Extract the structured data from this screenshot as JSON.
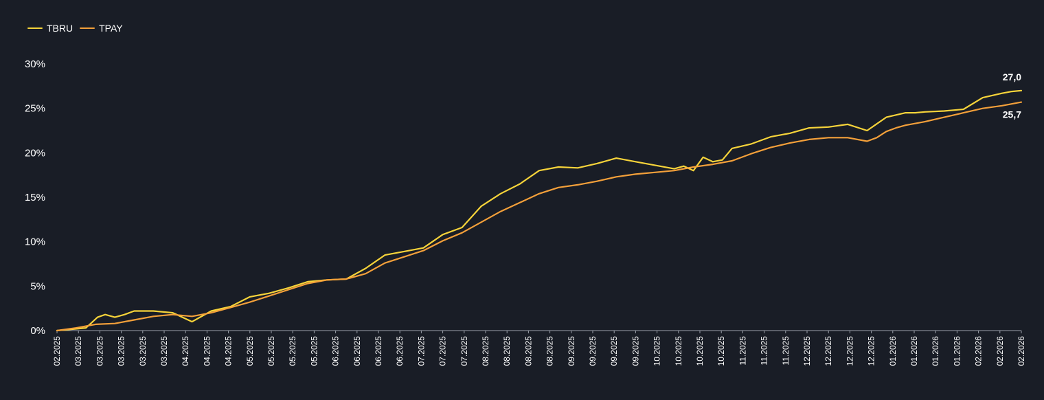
{
  "chart_data": {
    "type": "line",
    "title": "",
    "xlabel": "",
    "ylabel": "",
    "ylim": [
      0,
      30
    ],
    "y_ticks": [
      "0%",
      "5%",
      "10%",
      "15%",
      "20%",
      "25%",
      "30%"
    ],
    "y_tick_values": [
      0,
      5,
      10,
      15,
      20,
      25,
      30
    ],
    "x_tick_labels": [
      "02.2025",
      "03.2025",
      "03.2025",
      "03.2025",
      "03.2025",
      "03.2025",
      "04.2025",
      "04.2025",
      "04.2025",
      "05.2025",
      "05.2025",
      "05.2025",
      "05.2025",
      "06.2025",
      "06.2025",
      "06.2025",
      "06.2025",
      "07.2025",
      "07.2025",
      "07.2025",
      "08.2025",
      "08.2025",
      "08.2025",
      "08.2025",
      "09.2025",
      "09.2025",
      "09.2025",
      "09.2025",
      "10.2025",
      "10.2025",
      "10.2025",
      "10.2025",
      "11.2025",
      "11.2025",
      "11.2025",
      "12.2025",
      "12.2025",
      "12.2025",
      "12.2025",
      "01.2026",
      "01.2026",
      "01.2026",
      "01.2026",
      "02.2026",
      "02.2026",
      "02.2026"
    ],
    "x_domain": [
      0,
      100
    ],
    "grid": false,
    "legend_position": "top-left",
    "end_labels": {
      "TBRU": "27,0",
      "TPAY": "25,7"
    },
    "series": [
      {
        "name": "TBRU",
        "color": "#f7d43a",
        "x": [
          0,
          3,
          4.2,
          5,
          6,
          7,
          8,
          10,
          12,
          14,
          16,
          18,
          20,
          22,
          24,
          26,
          28,
          30,
          32,
          34,
          36,
          38,
          40,
          42,
          44,
          46,
          48,
          50,
          52,
          54,
          56,
          58,
          60,
          62,
          64,
          65,
          66,
          67,
          68,
          69,
          70,
          72,
          74,
          76,
          78,
          80,
          82,
          84,
          86,
          88,
          89,
          90,
          92,
          94,
          96,
          98,
          98.5,
          99,
          100
        ],
        "y": [
          0,
          0.3,
          1.5,
          1.8,
          1.5,
          1.8,
          2.2,
          2.2,
          2.0,
          1.0,
          2.2,
          2.7,
          3.8,
          4.2,
          4.8,
          5.5,
          5.7,
          5.8,
          7.0,
          8.5,
          8.9,
          9.3,
          10.8,
          11.6,
          14.0,
          15.4,
          16.5,
          18.0,
          18.4,
          18.3,
          18.8,
          19.4,
          19.0,
          18.6,
          18.2,
          18.5,
          18.0,
          19.5,
          19.0,
          19.2,
          20.5,
          21.0,
          21.8,
          22.2,
          22.8,
          22.9,
          23.2,
          22.5,
          24.0,
          24.5,
          24.5,
          24.6,
          24.7,
          24.9,
          26.2,
          26.7,
          26.8,
          26.9,
          27.0
        ]
      },
      {
        "name": "TPAY",
        "color": "#f4a03a",
        "x": [
          0,
          2,
          4,
          6,
          8,
          10,
          12,
          14,
          16,
          18,
          20,
          22,
          24,
          26,
          28,
          30,
          32,
          34,
          36,
          38,
          40,
          42,
          44,
          46,
          48,
          50,
          52,
          54,
          56,
          58,
          60,
          62,
          64,
          66,
          68,
          70,
          72,
          74,
          76,
          78,
          80,
          82,
          84,
          85,
          86,
          87,
          88,
          90,
          92,
          94,
          96,
          98,
          100
        ],
        "y": [
          0,
          0.3,
          0.7,
          0.8,
          1.2,
          1.6,
          1.8,
          1.6,
          2.0,
          2.6,
          3.2,
          3.9,
          4.6,
          5.3,
          5.7,
          5.8,
          6.4,
          7.6,
          8.3,
          9.0,
          10.1,
          11.0,
          12.2,
          13.4,
          14.4,
          15.4,
          16.1,
          16.4,
          16.8,
          17.3,
          17.6,
          17.8,
          18.0,
          18.4,
          18.7,
          19.1,
          19.9,
          20.6,
          21.1,
          21.5,
          21.7,
          21.7,
          21.3,
          21.7,
          22.4,
          22.8,
          23.1,
          23.5,
          24.0,
          24.5,
          25.0,
          25.3,
          25.7
        ]
      }
    ]
  }
}
